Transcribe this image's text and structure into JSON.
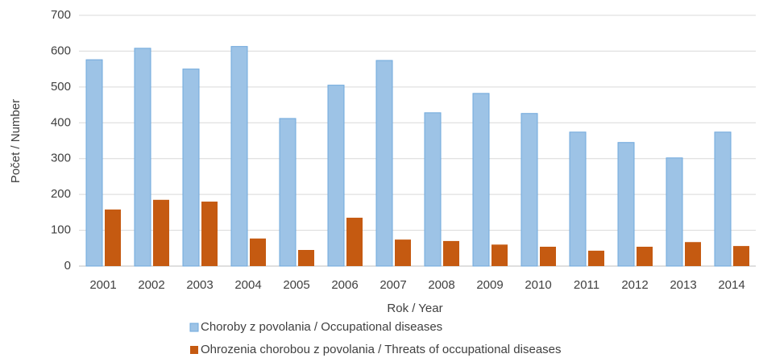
{
  "chart_data": {
    "type": "bar",
    "x_label": "Rok / Year",
    "y_label": "Počet / Number",
    "categories": [
      "2001",
      "2002",
      "2003",
      "2004",
      "2005",
      "2006",
      "2007",
      "2008",
      "2009",
      "2010",
      "2011",
      "2012",
      "2013",
      "2014"
    ],
    "series": [
      {
        "name": "Choroby z povolania  / Occupational diseases",
        "color": "#9dc3e6",
        "values": [
          576,
          608,
          550,
          613,
          412,
          505,
          574,
          428,
          482,
          426,
          374,
          345,
          302,
          374
        ]
      },
      {
        "name": "Ohrozenia chorobou z povolania / Threats of occupational diseases",
        "color": "#c55a11",
        "values": [
          158,
          185,
          180,
          77,
          45,
          135,
          74,
          70,
          60,
          54,
          43,
          54,
          67,
          56
        ]
      }
    ],
    "ylim": [
      0,
      700
    ],
    "yticks": [
      0,
      100,
      200,
      300,
      400,
      500,
      600,
      700
    ],
    "grid": true
  }
}
